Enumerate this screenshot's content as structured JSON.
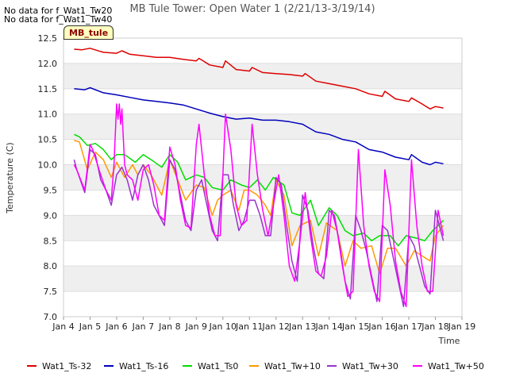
{
  "no_data": [
    "No data for f_Wat1_Tw20",
    "No data for f_Wat1_Tw40"
  ],
  "badge": "MB_tule",
  "chart_data": {
    "type": "line",
    "title": "MB Tule Tower: Open Water 1 (2/21/13-3/19/14)",
    "xlabel": "Time",
    "ylabel": "Temperature (C)",
    "xlim": [
      4,
      19
    ],
    "ylim": [
      7.0,
      12.5
    ],
    "xticks": [
      {
        "v": 4,
        "label": "Jan 4"
      },
      {
        "v": 5,
        "label": "Jan 5"
      },
      {
        "v": 6,
        "label": "Jan 6"
      },
      {
        "v": 7,
        "label": "Jan 7"
      },
      {
        "v": 8,
        "label": "Jan 8"
      },
      {
        "v": 9,
        "label": "Jan 9"
      },
      {
        "v": 10,
        "label": "Jan 10"
      },
      {
        "v": 11,
        "label": "Jan 11"
      },
      {
        "v": 12,
        "label": "Jan 12"
      },
      {
        "v": 13,
        "label": "Jan 13"
      },
      {
        "v": 14,
        "label": "Jan 14"
      },
      {
        "v": 15,
        "label": "Jan 15"
      },
      {
        "v": 16,
        "label": "Jan 16"
      },
      {
        "v": 17,
        "label": "Jan 17"
      },
      {
        "v": 18,
        "label": "Jan 18"
      },
      {
        "v": 19,
        "label": "Jan 19"
      }
    ],
    "yticks": [
      "7.0",
      "7.5",
      "8.0",
      "8.5",
      "9.0",
      "9.5",
      "10.0",
      "10.5",
      "11.0",
      "11.5",
      "12.0",
      "12.5"
    ],
    "grid": true,
    "legend_position": "bottom",
    "series": [
      {
        "name": "Wat1_Ts-32",
        "color": "#dd0000",
        "x": [
          4.4,
          4.7,
          5.0,
          5.5,
          6.0,
          6.2,
          6.5,
          7.0,
          7.5,
          8.0,
          8.5,
          9.0,
          9.1,
          9.5,
          10.0,
          10.1,
          10.5,
          11.0,
          11.1,
          11.5,
          12.0,
          12.5,
          13.0,
          13.1,
          13.5,
          14.0,
          14.5,
          15.0,
          15.5,
          16.0,
          16.1,
          16.5,
          17.0,
          17.1,
          17.5,
          17.8,
          18.0,
          18.3
        ],
        "y": [
          12.28,
          12.27,
          12.3,
          12.22,
          12.2,
          12.25,
          12.18,
          12.15,
          12.12,
          12.12,
          12.08,
          12.05,
          12.1,
          11.97,
          11.92,
          12.05,
          11.88,
          11.85,
          11.92,
          11.82,
          11.8,
          11.78,
          11.75,
          11.8,
          11.65,
          11.6,
          11.55,
          11.5,
          11.4,
          11.35,
          11.45,
          11.3,
          11.25,
          11.32,
          11.2,
          11.1,
          11.15,
          11.12
        ]
      },
      {
        "name": "Wat1_Ts-16",
        "color": "#0000bb",
        "x": [
          4.4,
          4.8,
          5.0,
          5.5,
          6.0,
          6.5,
          7.0,
          7.5,
          8.0,
          8.5,
          9.0,
          9.5,
          10.0,
          10.5,
          11.0,
          11.5,
          12.0,
          12.5,
          13.0,
          13.5,
          14.0,
          14.5,
          15.0,
          15.5,
          16.0,
          16.5,
          17.0,
          17.1,
          17.5,
          17.8,
          18.0,
          18.3
        ],
        "y": [
          11.5,
          11.48,
          11.52,
          11.42,
          11.38,
          11.33,
          11.28,
          11.25,
          11.22,
          11.18,
          11.1,
          11.02,
          10.95,
          10.9,
          10.92,
          10.88,
          10.88,
          10.85,
          10.8,
          10.65,
          10.6,
          10.5,
          10.45,
          10.3,
          10.25,
          10.15,
          10.1,
          10.2,
          10.05,
          10.0,
          10.05,
          10.02
        ]
      },
      {
        "name": "Wat1_Ts0",
        "color": "#00dd00",
        "x": [
          4.4,
          4.6,
          4.9,
          5.2,
          5.5,
          5.8,
          6.0,
          6.3,
          6.7,
          7.0,
          7.3,
          7.7,
          8.0,
          8.3,
          8.6,
          9.0,
          9.3,
          9.6,
          10.0,
          10.3,
          10.7,
          11.0,
          11.3,
          11.6,
          11.9,
          12.3,
          12.6,
          12.9,
          13.3,
          13.6,
          14.0,
          14.3,
          14.6,
          14.9,
          15.3,
          15.6,
          15.9,
          16.3,
          16.6,
          16.9,
          17.3,
          17.6,
          17.9,
          18.3
        ],
        "y": [
          10.6,
          10.55,
          10.38,
          10.42,
          10.3,
          10.1,
          10.2,
          10.2,
          10.05,
          10.2,
          10.1,
          9.95,
          10.2,
          10.05,
          9.7,
          9.8,
          9.75,
          9.55,
          9.5,
          9.7,
          9.6,
          9.55,
          9.7,
          9.5,
          9.75,
          9.6,
          9.05,
          9.0,
          9.3,
          8.8,
          9.15,
          9.0,
          8.7,
          8.6,
          8.65,
          8.5,
          8.6,
          8.6,
          8.4,
          8.6,
          8.55,
          8.5,
          8.7,
          8.9
        ]
      },
      {
        "name": "Wat1_Tw+10",
        "color": "#ff9900",
        "x": [
          4.4,
          4.6,
          4.9,
          5.2,
          5.5,
          5.8,
          6.0,
          6.3,
          6.6,
          6.8,
          7.0,
          7.3,
          7.7,
          8.0,
          8.3,
          8.6,
          9.0,
          9.3,
          9.6,
          9.8,
          10.0,
          10.3,
          10.6,
          10.8,
          11.0,
          11.3,
          11.6,
          11.8,
          12.0,
          12.3,
          12.6,
          12.9,
          13.3,
          13.6,
          13.9,
          14.3,
          14.6,
          14.9,
          15.2,
          15.6,
          15.9,
          16.2,
          16.5,
          16.9,
          17.2,
          17.5,
          17.8,
          18.0,
          18.3
        ],
        "y": [
          10.48,
          10.45,
          9.9,
          10.25,
          10.1,
          9.75,
          10.05,
          9.75,
          10.0,
          9.8,
          10.0,
          9.8,
          9.4,
          10.1,
          9.7,
          9.3,
          9.6,
          9.55,
          9.0,
          9.3,
          9.4,
          9.5,
          9.1,
          9.5,
          9.5,
          9.4,
          9.2,
          9.0,
          9.7,
          9.4,
          8.4,
          8.8,
          8.9,
          8.2,
          8.85,
          8.7,
          8.0,
          8.5,
          8.35,
          8.4,
          7.85,
          8.35,
          8.35,
          8.0,
          8.3,
          8.2,
          8.1,
          8.6,
          8.8
        ]
      },
      {
        "name": "Wat1_Tw+30",
        "color": "#9933cc",
        "x": [
          4.4,
          4.5,
          4.8,
          5.0,
          5.2,
          5.4,
          5.6,
          5.8,
          6.0,
          6.2,
          6.4,
          6.6,
          6.8,
          7.0,
          7.2,
          7.4,
          7.6,
          7.8,
          8.0,
          8.2,
          8.4,
          8.6,
          8.8,
          9.0,
          9.2,
          9.4,
          9.6,
          9.8,
          10.0,
          10.2,
          10.4,
          10.6,
          10.8,
          11.0,
          11.2,
          11.4,
          11.6,
          11.8,
          12.0,
          12.2,
          12.4,
          12.6,
          12.8,
          13.0,
          13.2,
          13.4,
          13.6,
          13.8,
          14.0,
          14.2,
          14.4,
          14.6,
          14.8,
          15.0,
          15.2,
          15.4,
          15.6,
          15.8,
          16.0,
          16.2,
          16.4,
          16.6,
          16.8,
          17.0,
          17.2,
          17.4,
          17.6,
          17.8,
          18.0,
          18.3
        ],
        "y": [
          10.1,
          9.9,
          9.45,
          10.3,
          10.2,
          9.7,
          9.5,
          9.2,
          9.8,
          9.95,
          9.7,
          9.3,
          9.8,
          10.0,
          9.7,
          9.2,
          9.0,
          8.8,
          10.1,
          9.9,
          9.4,
          8.9,
          8.7,
          9.5,
          9.7,
          9.2,
          8.7,
          8.5,
          9.8,
          9.8,
          9.2,
          8.7,
          8.9,
          9.3,
          9.3,
          9.0,
          8.6,
          8.6,
          9.75,
          9.6,
          8.8,
          8.1,
          7.7,
          9.4,
          9.1,
          8.4,
          7.85,
          7.75,
          9.1,
          9.0,
          8.4,
          7.7,
          7.35,
          9.0,
          8.7,
          8.3,
          7.8,
          7.3,
          8.8,
          8.7,
          8.2,
          7.7,
          7.2,
          8.6,
          8.4,
          8.0,
          7.6,
          7.45,
          9.1,
          8.5
        ]
      },
      {
        "name": "Wat1_Tw+50",
        "color": "#ff00ff",
        "x": [
          4.4,
          4.5,
          4.8,
          5.0,
          5.1,
          5.4,
          5.6,
          5.8,
          5.9,
          6.0,
          6.05,
          6.1,
          6.15,
          6.2,
          6.3,
          6.4,
          6.6,
          6.8,
          7.0,
          7.2,
          7.4,
          7.6,
          7.8,
          8.0,
          8.2,
          8.4,
          8.6,
          8.8,
          9.0,
          9.1,
          9.3,
          9.5,
          9.7,
          9.9,
          10.1,
          10.3,
          10.5,
          10.7,
          10.9,
          11.1,
          11.3,
          11.5,
          11.7,
          11.9,
          12.1,
          12.3,
          12.5,
          12.7,
          12.9,
          13.1,
          13.3,
          13.5,
          13.7,
          13.9,
          14.1,
          14.3,
          14.5,
          14.7,
          14.9,
          15.1,
          15.3,
          15.5,
          15.7,
          15.9,
          16.1,
          16.3,
          16.5,
          16.7,
          16.9,
          17.1,
          17.3,
          17.5,
          17.7,
          17.9,
          18.1,
          18.3
        ],
        "y": [
          10.0,
          9.9,
          9.5,
          10.4,
          10.3,
          9.8,
          9.5,
          9.3,
          10.0,
          11.2,
          10.9,
          11.2,
          10.8,
          11.1,
          10.0,
          9.8,
          9.7,
          9.3,
          9.9,
          10.0,
          9.6,
          9.0,
          8.9,
          10.35,
          10.0,
          9.3,
          8.8,
          8.75,
          10.4,
          10.8,
          9.8,
          9.0,
          8.6,
          8.6,
          11.0,
          10.3,
          9.2,
          8.8,
          8.9,
          10.8,
          9.8,
          9.1,
          8.6,
          9.2,
          9.8,
          9.0,
          8.0,
          7.7,
          8.5,
          9.45,
          8.6,
          7.9,
          7.8,
          8.2,
          9.1,
          8.7,
          8.0,
          7.4,
          7.5,
          10.3,
          8.8,
          8.0,
          7.5,
          7.3,
          9.9,
          9.2,
          8.1,
          7.5,
          7.2,
          10.1,
          8.8,
          8.0,
          7.5,
          7.5,
          9.1,
          8.6
        ]
      }
    ]
  }
}
